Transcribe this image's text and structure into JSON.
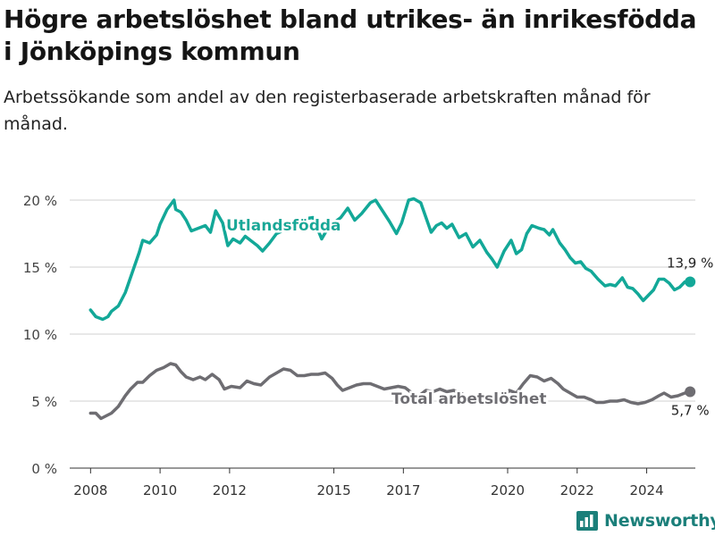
{
  "title": "Högre arbetslöshet bland utrikes- än inrikesfödda i Jönköpings kommun",
  "subtitle": "Arbetssökande som andel av den registerbaserade arbetskraften månad för månad.",
  "logo": {
    "name": "Newsworthy",
    "icon": "bar-chart-logo-icon"
  },
  "colors": {
    "utlandsfodda": "#13a898",
    "total": "#6e6d72",
    "grid": "#d0d0d0",
    "axis": "#333333",
    "logo": "#1b7f7a"
  },
  "chart_data": {
    "type": "line",
    "xlim": [
      2007.4,
      2025.4
    ],
    "ylim": [
      0,
      20
    ],
    "grid": true,
    "y_ticks": [
      {
        "value": 0,
        "label": "0 %"
      },
      {
        "value": 5,
        "label": "5 %"
      },
      {
        "value": 10,
        "label": "10 %"
      },
      {
        "value": 15,
        "label": "15 %"
      },
      {
        "value": 20,
        "label": "20 %"
      }
    ],
    "x_ticks": [
      {
        "value": 2008,
        "label": "2008"
      },
      {
        "value": 2010,
        "label": "2010"
      },
      {
        "value": 2012,
        "label": "2012"
      },
      {
        "value": 2015,
        "label": "2015"
      },
      {
        "value": 2017,
        "label": "2017"
      },
      {
        "value": 2020,
        "label": "2020"
      },
      {
        "value": 2022,
        "label": "2022"
      },
      {
        "value": 2024,
        "label": "2024"
      }
    ],
    "series": [
      {
        "name": "Utlandsfödda",
        "color": "#13a898",
        "end_label": "13,9 %",
        "points": [
          [
            2008.0,
            11.8
          ],
          [
            2008.15,
            11.3
          ],
          [
            2008.35,
            11.1
          ],
          [
            2008.5,
            11.3
          ],
          [
            2008.6,
            11.7
          ],
          [
            2008.8,
            12.1
          ],
          [
            2009.0,
            13.1
          ],
          [
            2009.2,
            14.6
          ],
          [
            2009.4,
            16.1
          ],
          [
            2009.5,
            17.0
          ],
          [
            2009.7,
            16.8
          ],
          [
            2009.9,
            17.4
          ],
          [
            2010.0,
            18.2
          ],
          [
            2010.2,
            19.3
          ],
          [
            2010.4,
            20.0
          ],
          [
            2010.45,
            19.3
          ],
          [
            2010.6,
            19.1
          ],
          [
            2010.75,
            18.5
          ],
          [
            2010.9,
            17.7
          ],
          [
            2011.1,
            17.9
          ],
          [
            2011.3,
            18.1
          ],
          [
            2011.45,
            17.6
          ],
          [
            2011.6,
            19.2
          ],
          [
            2011.8,
            18.3
          ],
          [
            2011.95,
            16.6
          ],
          [
            2012.1,
            17.1
          ],
          [
            2012.3,
            16.8
          ],
          [
            2012.45,
            17.3
          ],
          [
            2012.6,
            17.0
          ],
          [
            2012.8,
            16.6
          ],
          [
            2012.95,
            16.2
          ],
          [
            2013.15,
            16.8
          ],
          [
            2013.35,
            17.5
          ],
          [
            2013.6,
            17.8
          ],
          [
            2013.9,
            18.3
          ],
          [
            2014.15,
            18.6
          ],
          [
            2014.4,
            18.7
          ],
          [
            2014.65,
            17.1
          ],
          [
            2014.85,
            18.0
          ],
          [
            2015.2,
            18.7
          ],
          [
            2015.4,
            19.4
          ],
          [
            2015.6,
            18.5
          ],
          [
            2015.8,
            19.0
          ],
          [
            2016.05,
            19.8
          ],
          [
            2016.2,
            20.0
          ],
          [
            2016.4,
            19.2
          ],
          [
            2016.6,
            18.4
          ],
          [
            2016.8,
            17.5
          ],
          [
            2016.95,
            18.3
          ],
          [
            2017.15,
            20.0
          ],
          [
            2017.3,
            20.1
          ],
          [
            2017.5,
            19.8
          ],
          [
            2017.65,
            18.7
          ],
          [
            2017.8,
            17.6
          ],
          [
            2017.95,
            18.1
          ],
          [
            2018.1,
            18.3
          ],
          [
            2018.25,
            17.9
          ],
          [
            2018.4,
            18.2
          ],
          [
            2018.6,
            17.2
          ],
          [
            2018.8,
            17.5
          ],
          [
            2019.0,
            16.5
          ],
          [
            2019.2,
            17.0
          ],
          [
            2019.4,
            16.1
          ],
          [
            2019.55,
            15.6
          ],
          [
            2019.7,
            15.0
          ],
          [
            2019.9,
            16.2
          ],
          [
            2020.1,
            17.0
          ],
          [
            2020.25,
            16.0
          ],
          [
            2020.4,
            16.3
          ],
          [
            2020.55,
            17.5
          ],
          [
            2020.7,
            18.1
          ],
          [
            2020.9,
            17.9
          ],
          [
            2021.05,
            17.8
          ],
          [
            2021.2,
            17.4
          ],
          [
            2021.3,
            17.8
          ],
          [
            2021.5,
            16.8
          ],
          [
            2021.65,
            16.3
          ],
          [
            2021.8,
            15.7
          ],
          [
            2021.95,
            15.3
          ],
          [
            2022.1,
            15.4
          ],
          [
            2022.25,
            14.9
          ],
          [
            2022.4,
            14.7
          ],
          [
            2022.6,
            14.1
          ],
          [
            2022.8,
            13.6
          ],
          [
            2022.95,
            13.7
          ],
          [
            2023.1,
            13.6
          ],
          [
            2023.3,
            14.2
          ],
          [
            2023.45,
            13.5
          ],
          [
            2023.6,
            13.4
          ],
          [
            2023.75,
            13.0
          ],
          [
            2023.9,
            12.5
          ],
          [
            2024.05,
            12.9
          ],
          [
            2024.2,
            13.3
          ],
          [
            2024.35,
            14.1
          ],
          [
            2024.5,
            14.1
          ],
          [
            2024.65,
            13.8
          ],
          [
            2024.8,
            13.3
          ],
          [
            2024.95,
            13.5
          ],
          [
            2025.1,
            13.9
          ],
          [
            2025.25,
            13.9
          ]
        ]
      },
      {
        "name": "Total arbetslöshet",
        "color": "#6e6d72",
        "end_label": "5,7 %",
        "points": [
          [
            2008.0,
            4.1
          ],
          [
            2008.15,
            4.1
          ],
          [
            2008.3,
            3.7
          ],
          [
            2008.45,
            3.9
          ],
          [
            2008.6,
            4.1
          ],
          [
            2008.8,
            4.6
          ],
          [
            2009.0,
            5.4
          ],
          [
            2009.15,
            5.9
          ],
          [
            2009.35,
            6.4
          ],
          [
            2009.5,
            6.4
          ],
          [
            2009.7,
            6.9
          ],
          [
            2009.9,
            7.3
          ],
          [
            2010.1,
            7.5
          ],
          [
            2010.3,
            7.8
          ],
          [
            2010.45,
            7.7
          ],
          [
            2010.6,
            7.2
          ],
          [
            2010.75,
            6.8
          ],
          [
            2010.95,
            6.6
          ],
          [
            2011.15,
            6.8
          ],
          [
            2011.3,
            6.6
          ],
          [
            2011.5,
            7.0
          ],
          [
            2011.7,
            6.6
          ],
          [
            2011.85,
            5.9
          ],
          [
            2012.05,
            6.1
          ],
          [
            2012.3,
            6.0
          ],
          [
            2012.5,
            6.5
          ],
          [
            2012.7,
            6.3
          ],
          [
            2012.9,
            6.2
          ],
          [
            2013.15,
            6.8
          ],
          [
            2013.35,
            7.1
          ],
          [
            2013.55,
            7.4
          ],
          [
            2013.75,
            7.3
          ],
          [
            2013.95,
            6.9
          ],
          [
            2014.15,
            6.9
          ],
          [
            2014.35,
            7.0
          ],
          [
            2014.55,
            7.0
          ],
          [
            2014.75,
            7.1
          ],
          [
            2014.95,
            6.7
          ],
          [
            2015.1,
            6.2
          ],
          [
            2015.25,
            5.8
          ],
          [
            2015.45,
            6.0
          ],
          [
            2015.65,
            6.2
          ],
          [
            2015.85,
            6.3
          ],
          [
            2016.05,
            6.3
          ],
          [
            2016.25,
            6.1
          ],
          [
            2016.45,
            5.9
          ],
          [
            2016.65,
            6.0
          ],
          [
            2016.85,
            6.1
          ],
          [
            2017.05,
            6.0
          ],
          [
            2017.25,
            5.6
          ],
          [
            2017.45,
            5.4
          ],
          [
            2017.65,
            5.8
          ],
          [
            2017.85,
            5.7
          ],
          [
            2018.05,
            5.9
          ],
          [
            2018.25,
            5.7
          ],
          [
            2018.45,
            5.8
          ],
          [
            2018.65,
            5.6
          ],
          [
            2018.85,
            5.3
          ],
          [
            2019.05,
            5.4
          ],
          [
            2019.25,
            5.3
          ],
          [
            2019.45,
            5.0
          ],
          [
            2019.65,
            5.0
          ],
          [
            2019.85,
            5.3
          ],
          [
            2020.05,
            5.8
          ],
          [
            2020.25,
            5.6
          ],
          [
            2020.45,
            6.3
          ],
          [
            2020.65,
            6.9
          ],
          [
            2020.85,
            6.8
          ],
          [
            2021.05,
            6.5
          ],
          [
            2021.25,
            6.7
          ],
          [
            2021.45,
            6.3
          ],
          [
            2021.6,
            5.9
          ],
          [
            2021.8,
            5.6
          ],
          [
            2022.0,
            5.3
          ],
          [
            2022.2,
            5.3
          ],
          [
            2022.4,
            5.1
          ],
          [
            2022.55,
            4.9
          ],
          [
            2022.75,
            4.9
          ],
          [
            2022.95,
            5.0
          ],
          [
            2023.15,
            5.0
          ],
          [
            2023.35,
            5.1
          ],
          [
            2023.55,
            4.9
          ],
          [
            2023.75,
            4.8
          ],
          [
            2023.95,
            4.9
          ],
          [
            2024.15,
            5.1
          ],
          [
            2024.35,
            5.4
          ],
          [
            2024.5,
            5.6
          ],
          [
            2024.7,
            5.3
          ],
          [
            2024.9,
            5.4
          ],
          [
            2025.1,
            5.6
          ],
          [
            2025.25,
            5.7
          ]
        ]
      }
    ]
  }
}
